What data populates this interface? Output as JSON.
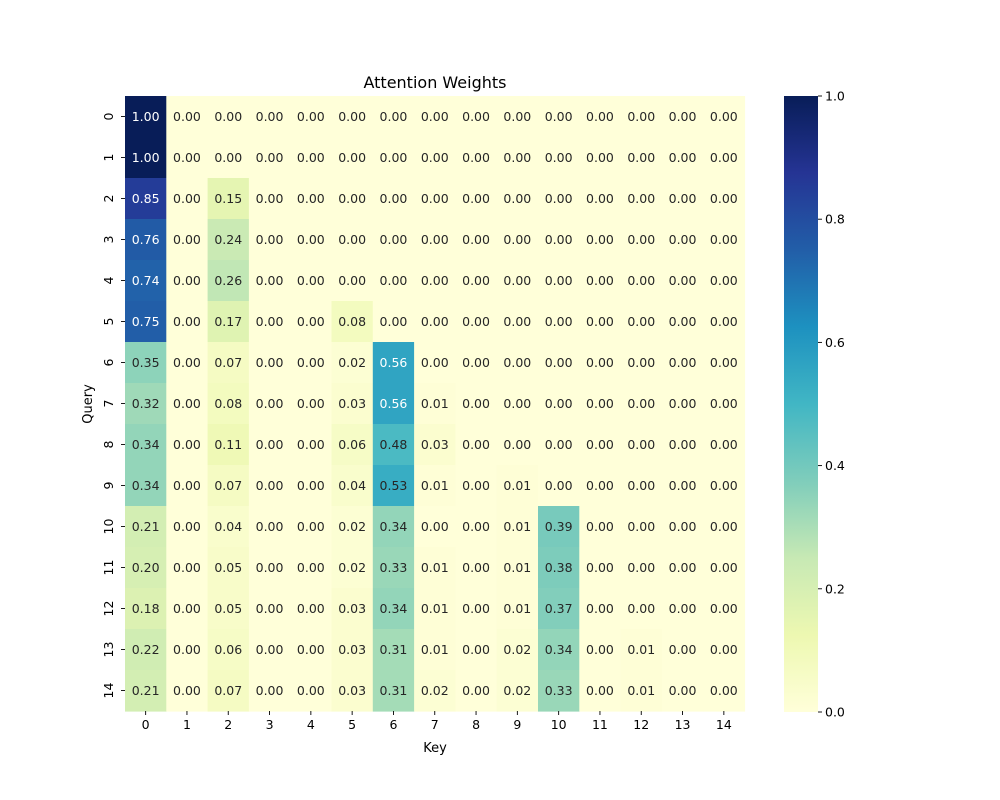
{
  "chart_data": {
    "type": "heatmap",
    "title": "Attention Weights",
    "xlabel": "Key",
    "ylabel": "Query",
    "x_categories": [
      "0",
      "1",
      "2",
      "3",
      "4",
      "5",
      "6",
      "7",
      "8",
      "9",
      "10",
      "11",
      "12",
      "13",
      "14"
    ],
    "y_categories": [
      "0",
      "1",
      "2",
      "3",
      "4",
      "5",
      "6",
      "7",
      "8",
      "9",
      "10",
      "11",
      "12",
      "13",
      "14"
    ],
    "values": [
      [
        1.0,
        0.0,
        0.0,
        0.0,
        0.0,
        0.0,
        0.0,
        0.0,
        0.0,
        0.0,
        0.0,
        0.0,
        0.0,
        0.0,
        0.0
      ],
      [
        1.0,
        0.0,
        0.0,
        0.0,
        0.0,
        0.0,
        0.0,
        0.0,
        0.0,
        0.0,
        0.0,
        0.0,
        0.0,
        0.0,
        0.0
      ],
      [
        0.85,
        0.0,
        0.15,
        0.0,
        0.0,
        0.0,
        0.0,
        0.0,
        0.0,
        0.0,
        0.0,
        0.0,
        0.0,
        0.0,
        0.0
      ],
      [
        0.76,
        0.0,
        0.24,
        0.0,
        0.0,
        0.0,
        0.0,
        0.0,
        0.0,
        0.0,
        0.0,
        0.0,
        0.0,
        0.0,
        0.0
      ],
      [
        0.74,
        0.0,
        0.26,
        0.0,
        0.0,
        0.0,
        0.0,
        0.0,
        0.0,
        0.0,
        0.0,
        0.0,
        0.0,
        0.0,
        0.0
      ],
      [
        0.75,
        0.0,
        0.17,
        0.0,
        0.0,
        0.08,
        0.0,
        0.0,
        0.0,
        0.0,
        0.0,
        0.0,
        0.0,
        0.0,
        0.0
      ],
      [
        0.35,
        0.0,
        0.07,
        0.0,
        0.0,
        0.02,
        0.56,
        0.0,
        0.0,
        0.0,
        0.0,
        0.0,
        0.0,
        0.0,
        0.0
      ],
      [
        0.32,
        0.0,
        0.08,
        0.0,
        0.0,
        0.03,
        0.56,
        0.01,
        0.0,
        0.0,
        0.0,
        0.0,
        0.0,
        0.0,
        0.0
      ],
      [
        0.34,
        0.0,
        0.11,
        0.0,
        0.0,
        0.06,
        0.48,
        0.03,
        0.0,
        0.0,
        0.0,
        0.0,
        0.0,
        0.0,
        0.0
      ],
      [
        0.34,
        0.0,
        0.07,
        0.0,
        0.0,
        0.04,
        0.53,
        0.01,
        0.0,
        0.01,
        0.0,
        0.0,
        0.0,
        0.0,
        0.0
      ],
      [
        0.21,
        0.0,
        0.04,
        0.0,
        0.0,
        0.02,
        0.34,
        0.0,
        0.0,
        0.01,
        0.39,
        0.0,
        0.0,
        0.0,
        0.0
      ],
      [
        0.2,
        0.0,
        0.05,
        0.0,
        0.0,
        0.02,
        0.33,
        0.01,
        0.0,
        0.01,
        0.38,
        0.0,
        0.0,
        0.0,
        0.0
      ],
      [
        0.18,
        0.0,
        0.05,
        0.0,
        0.0,
        0.03,
        0.34,
        0.01,
        0.0,
        0.01,
        0.37,
        0.0,
        0.0,
        0.0,
        0.0
      ],
      [
        0.22,
        0.0,
        0.06,
        0.0,
        0.0,
        0.03,
        0.31,
        0.01,
        0.0,
        0.02,
        0.34,
        0.0,
        0.01,
        0.0,
        0.0
      ],
      [
        0.21,
        0.0,
        0.07,
        0.0,
        0.0,
        0.03,
        0.31,
        0.02,
        0.0,
        0.02,
        0.33,
        0.0,
        0.01,
        0.0,
        0.0
      ]
    ],
    "value_range": [
      0.0,
      1.0
    ],
    "annotations": true,
    "annotation_format": "0.00",
    "colormap": "YlGnBu",
    "colormap_stops": [
      "#ffffd9",
      "#edf8b1",
      "#c7e9b4",
      "#7fcdbb",
      "#41b6c4",
      "#1d91c0",
      "#225ea8",
      "#253494",
      "#081d58"
    ],
    "colorbar": {
      "ticks": [
        "0.0",
        "0.2",
        "0.4",
        "0.6",
        "0.8",
        "1.0"
      ]
    },
    "grid": false,
    "legend": "colorbar-right"
  }
}
